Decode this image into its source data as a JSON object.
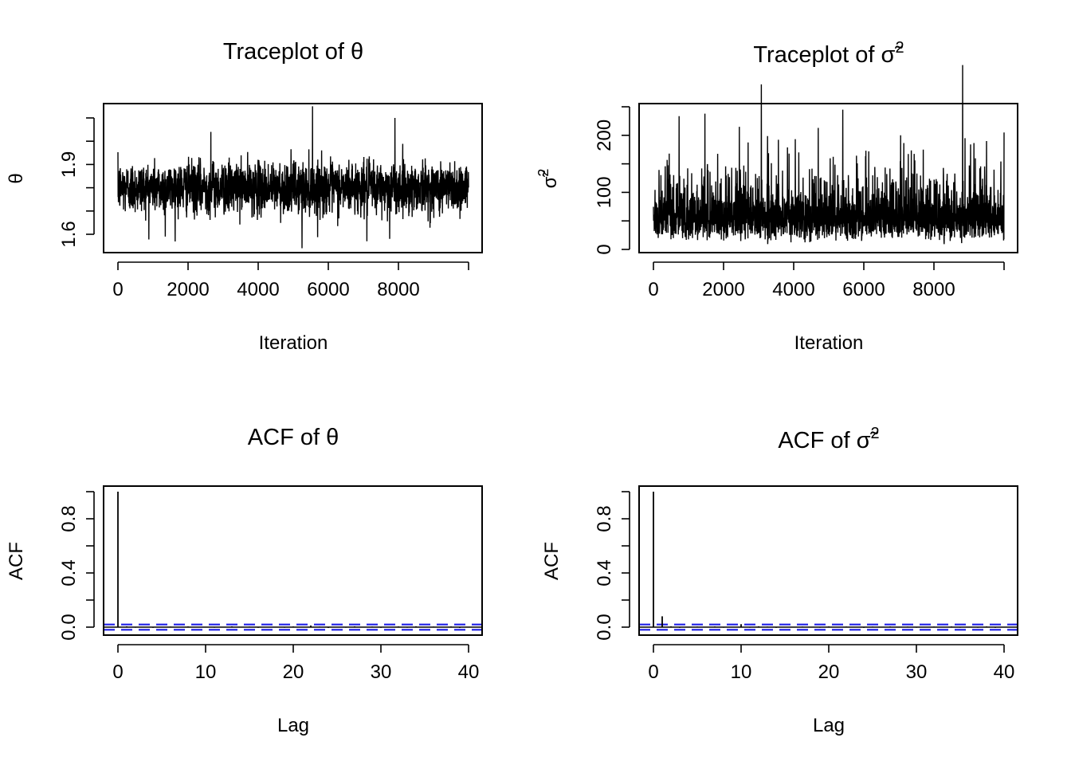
{
  "chart_data": [
    {
      "id": "trace-theta",
      "type": "line",
      "title": "Traceplot of θ",
      "xlabel": "Iteration",
      "ylabel": "θ",
      "xlim": [
        0,
        10000
      ],
      "ylim": [
        1.6,
        2.1
      ],
      "xticks": [
        0,
        2000,
        4000,
        6000,
        8000,
        10000
      ],
      "xtick_labels": [
        "0",
        "2000",
        "4000",
        "6000",
        "8000",
        ""
      ],
      "yticks": [
        1.6,
        1.7,
        1.8,
        1.9,
        2.0,
        2.1
      ],
      "ytick_labels": [
        "1.6",
        "",
        "",
        "1.9",
        "",
        ""
      ],
      "series": [
        {
          "name": "theta",
          "n_iterations": 10000,
          "center": 1.8,
          "typical_range": [
            1.68,
            1.9
          ],
          "min": 1.54,
          "max": 2.15,
          "spikes": [
            {
              "x": 5250,
              "y": 1.54
            },
            {
              "x": 5550,
              "y": 2.15
            },
            {
              "x": 7900,
              "y": 2.1
            },
            {
              "x": 7100,
              "y": 1.57
            },
            {
              "x": 7750,
              "y": 1.58
            },
            {
              "x": 2650,
              "y": 2.04
            },
            {
              "x": 1350,
              "y": 1.59
            }
          ]
        }
      ],
      "grid": false
    },
    {
      "id": "trace-sigma2",
      "type": "line",
      "title_main": "Traceplot of ",
      "title_symbol": "σ̃",
      "title_sup": "2",
      "xlabel": "Iteration",
      "ylabel_symbol": "σ̃",
      "ylabel_sup": "2",
      "xlim": [
        0,
        10000
      ],
      "ylim": [
        0,
        250
      ],
      "xticks": [
        0,
        2000,
        4000,
        6000,
        8000,
        10000
      ],
      "xtick_labels": [
        "0",
        "2000",
        "4000",
        "6000",
        "8000",
        ""
      ],
      "yticks": [
        0,
        50,
        100,
        150,
        200,
        250
      ],
      "ytick_labels": [
        "0",
        "",
        "100",
        "",
        "200",
        ""
      ],
      "series": [
        {
          "name": "sigma2",
          "n_iterations": 10000,
          "center": 60,
          "typical_range": [
            15,
            140
          ],
          "min": 5,
          "max": 245,
          "spikes": [
            {
              "x": 5400,
              "y": 245
            },
            {
              "x": 2450,
              "y": 215
            },
            {
              "x": 4700,
              "y": 213
            },
            {
              "x": 10000,
              "y": 205
            },
            {
              "x": 7050,
              "y": 200
            },
            {
              "x": 9500,
              "y": 190
            }
          ]
        }
      ],
      "grid": false
    },
    {
      "id": "acf-theta",
      "type": "bar",
      "title": "ACF of θ",
      "xlabel": "Lag",
      "ylabel": "ACF",
      "xlim": [
        0,
        40
      ],
      "ylim": [
        -0.02,
        1.0
      ],
      "xticks": [
        0,
        10,
        20,
        30,
        40
      ],
      "xtick_labels": [
        "0",
        "10",
        "20",
        "30",
        "40"
      ],
      "yticks": [
        0.0,
        0.2,
        0.4,
        0.6,
        0.8,
        1.0
      ],
      "ytick_labels": [
        "0.0",
        "",
        "0.4",
        "",
        "0.8",
        ""
      ],
      "lags": [
        0,
        1,
        2,
        3,
        4,
        5,
        6,
        7,
        8,
        9,
        10,
        11,
        12,
        13,
        14,
        15,
        16,
        17,
        18,
        19,
        20,
        21,
        22,
        23,
        24,
        25,
        26,
        27,
        28,
        29,
        30,
        31,
        32,
        33,
        34,
        35,
        36,
        37,
        38,
        39,
        40
      ],
      "values": [
        1.0,
        0.006,
        -0.004,
        0.003,
        -0.005,
        0.002,
        0.004,
        -0.003,
        0.005,
        -0.002,
        0.003,
        -0.004,
        0.002,
        0.006,
        -0.003,
        0.004,
        -0.005,
        0.003,
        0.002,
        -0.004,
        0.005,
        -0.003,
        0.012,
        0.004,
        -0.006,
        0.003,
        -0.004,
        0.006,
        -0.003,
        0.004,
        -0.005,
        0.003,
        0.005,
        -0.004,
        0.006,
        -0.003,
        0.004,
        -0.002,
        0.005,
        -0.006,
        0.003
      ],
      "ci": 0.0196,
      "ci_color": "#1f1fe6",
      "grid": false
    },
    {
      "id": "acf-sigma2",
      "type": "bar",
      "title_main": "ACF of ",
      "title_symbol": "σ̃",
      "title_sup": "2",
      "xlabel": "Lag",
      "ylabel": "ACF",
      "xlim": [
        0,
        40
      ],
      "ylim": [
        -0.02,
        1.0
      ],
      "xticks": [
        0,
        10,
        20,
        30,
        40
      ],
      "xtick_labels": [
        "0",
        "10",
        "20",
        "30",
        "40"
      ],
      "yticks": [
        0.0,
        0.2,
        0.4,
        0.6,
        0.8,
        1.0
      ],
      "ytick_labels": [
        "0.0",
        "",
        "0.4",
        "",
        "0.8",
        ""
      ],
      "lags": [
        0,
        1,
        2,
        3,
        4,
        5,
        6,
        7,
        8,
        9,
        10,
        11,
        12,
        13,
        14,
        15,
        16,
        17,
        18,
        19,
        20,
        21,
        22,
        23,
        24,
        25,
        26,
        27,
        28,
        29,
        30,
        31,
        32,
        33,
        34,
        35,
        36,
        37,
        38,
        39,
        40
      ],
      "values": [
        1.0,
        0.08,
        0.006,
        -0.005,
        0.003,
        0.004,
        -0.003,
        0.005,
        -0.004,
        0.003,
        0.022,
        -0.004,
        0.006,
        0.004,
        -0.005,
        0.003,
        -0.003,
        0.004,
        0.002,
        -0.004,
        0.005,
        -0.003,
        0.004,
        0.003,
        -0.005,
        0.004,
        -0.003,
        0.005,
        -0.003,
        0.004,
        -0.004,
        0.003,
        0.004,
        -0.003,
        0.005,
        -0.004,
        0.003,
        -0.004,
        0.005,
        -0.005,
        0.003
      ],
      "ci": 0.0196,
      "ci_color": "#1f1fe6",
      "grid": false
    }
  ]
}
